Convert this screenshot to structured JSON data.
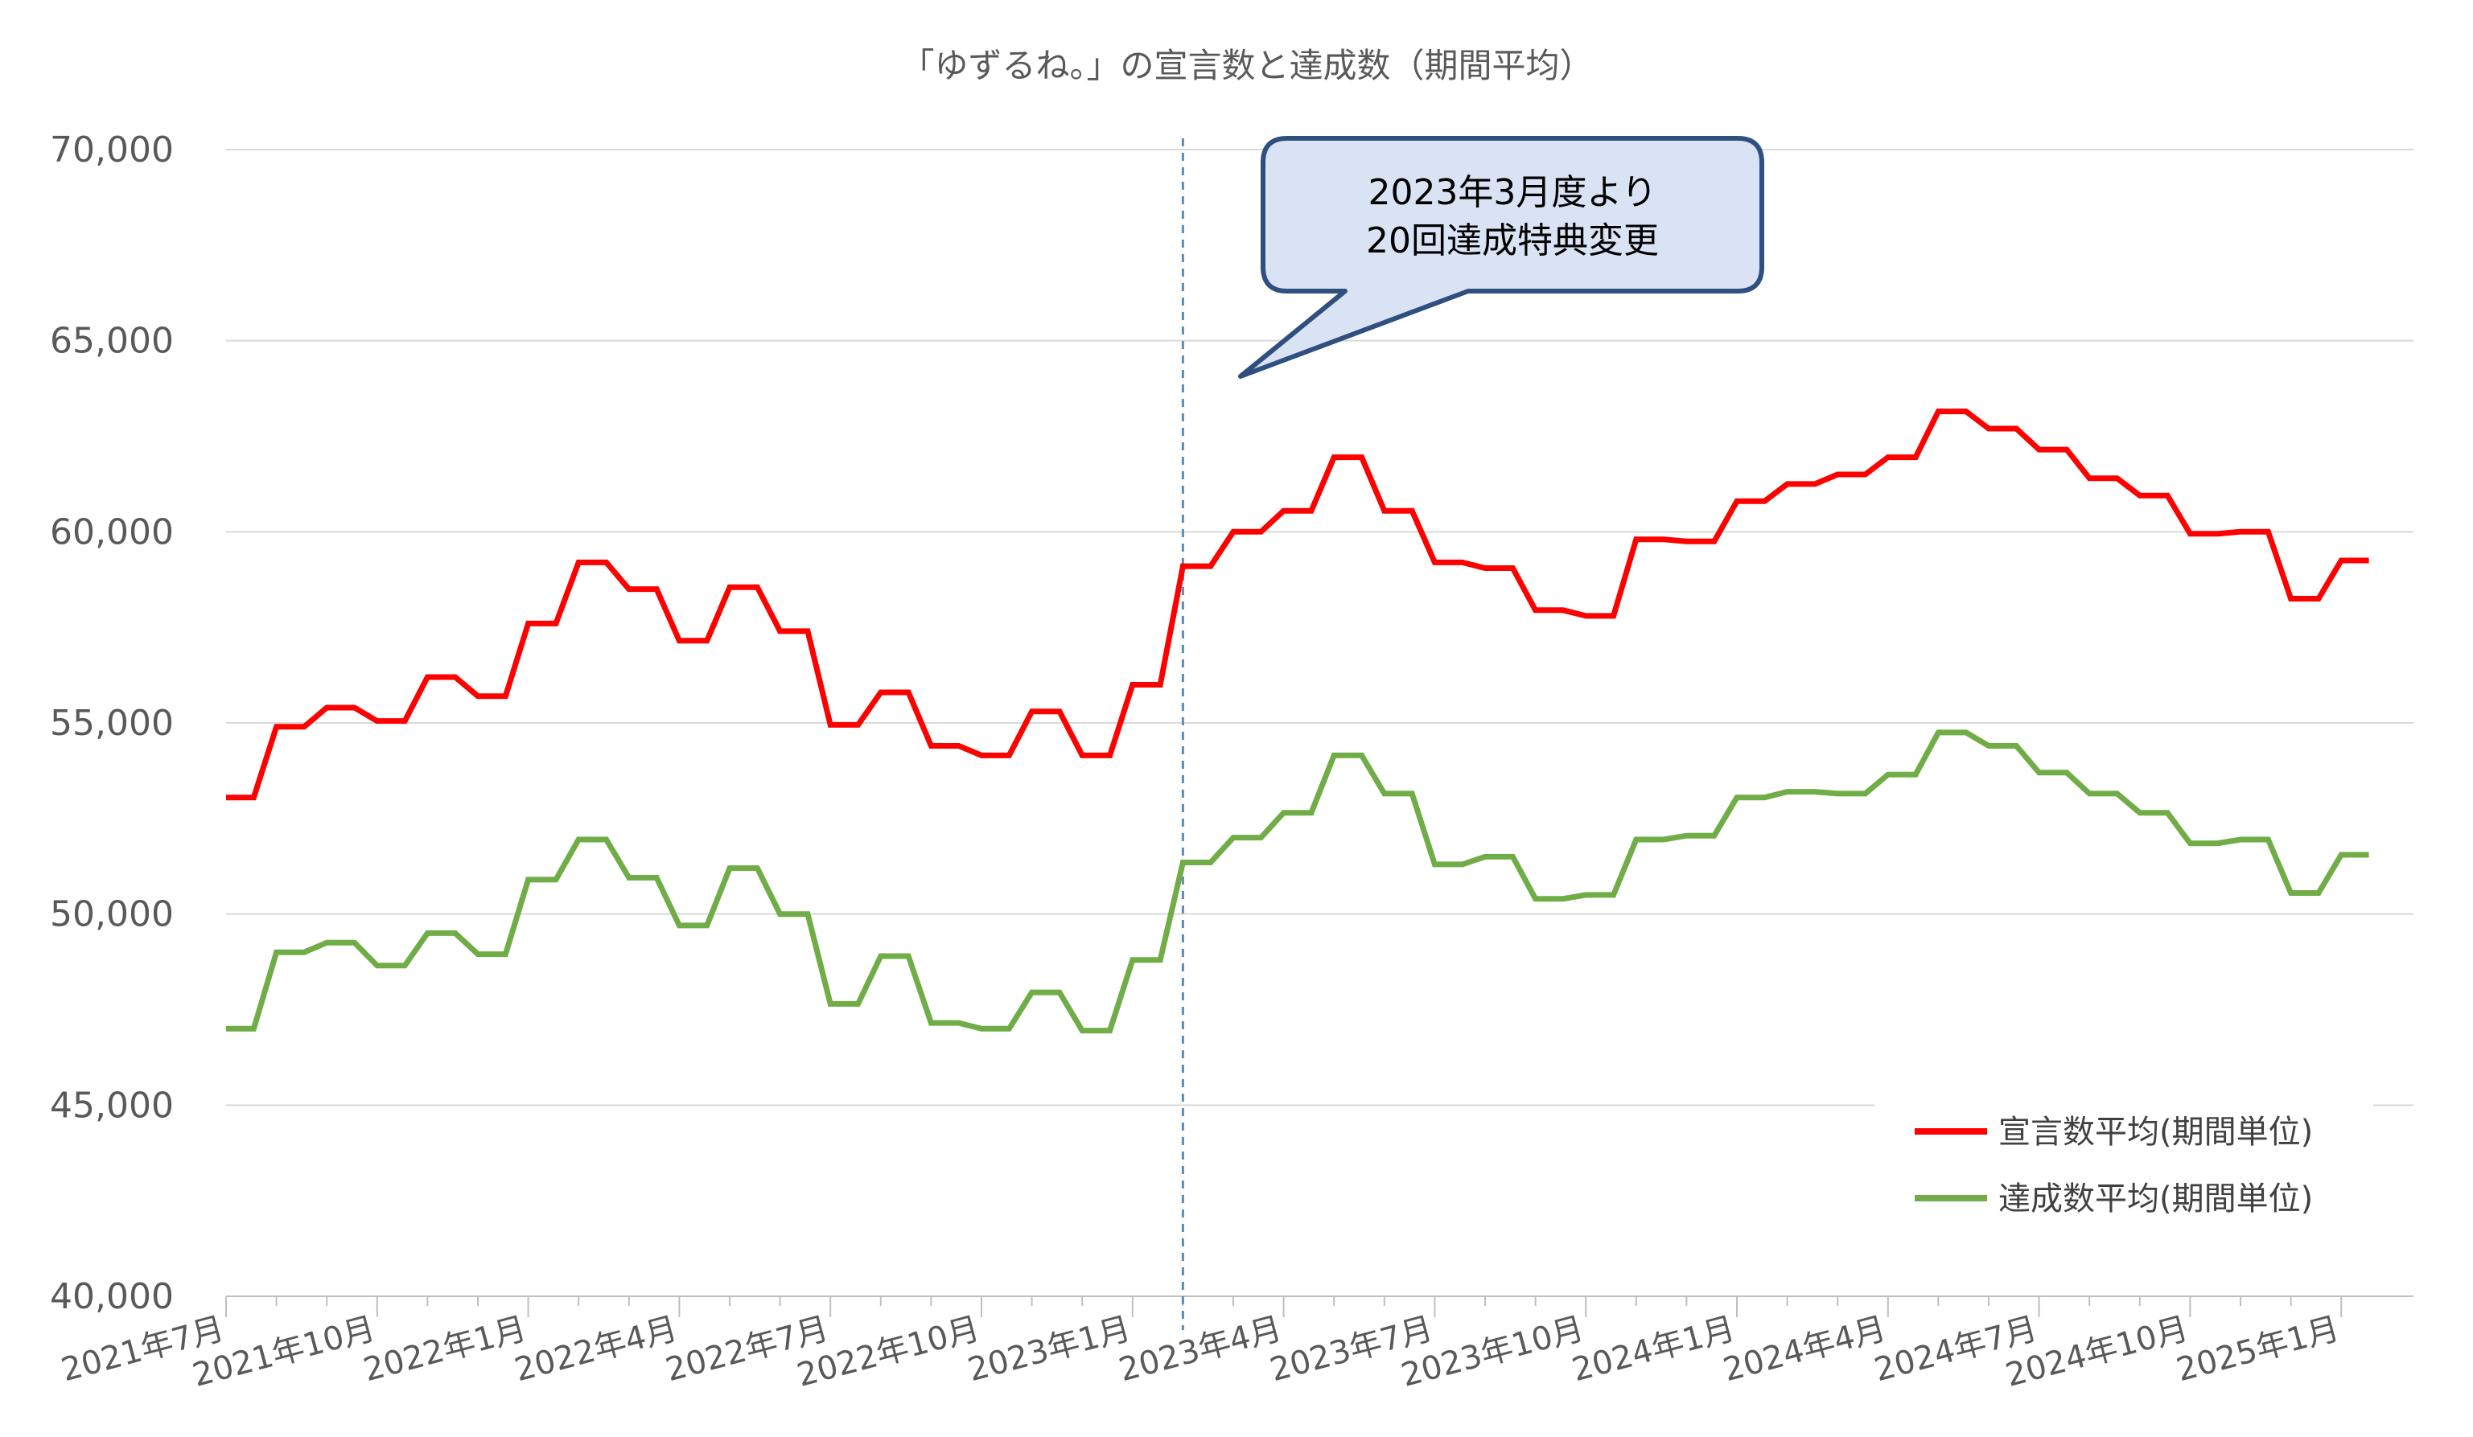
{
  "chart_data": {
    "type": "line",
    "title": "「ゆずるね。」の宣言数と達成数（期間平均）",
    "xlabel": "",
    "ylabel": "",
    "ylim": [
      40000,
      70000
    ],
    "yticks": [
      "40,000",
      "45,000",
      "50,000",
      "55,000",
      "60,000",
      "65,000",
      "70,000"
    ],
    "ytick_values": [
      40000,
      45000,
      50000,
      55000,
      60000,
      65000,
      70000
    ],
    "x_labels": [
      "2021年7月",
      "2021年10月",
      "2022年1月",
      "2022年4月",
      "2022年7月",
      "2022年10月",
      "2023年1月",
      "2023年4月",
      "2023年7月",
      "2023年10月",
      "2024年1月",
      "2024年4月",
      "2024年7月",
      "2024年10月",
      "2025年1月"
    ],
    "x_label_month_index": [
      0,
      3,
      6,
      9,
      12,
      15,
      18,
      21,
      24,
      27,
      30,
      33,
      36,
      39,
      42
    ],
    "months_count": 43,
    "grid": true,
    "legend_position": "bottom-right",
    "annotation": {
      "lines": [
        "2023年3月度より",
        "20回達成特典変更"
      ],
      "marker_month_index": 19
    },
    "series": [
      {
        "name": "宣言数平均(期間単位)",
        "color": "#ff0000",
        "values": [
          53050,
          54900,
          55400,
          55050,
          56200,
          55700,
          57600,
          59200,
          58500,
          57150,
          58550,
          57400,
          54950,
          55800,
          54400,
          54150,
          55300,
          54150,
          56000,
          59100,
          60000,
          60550,
          61950,
          60550,
          59200,
          59050,
          57950,
          57800,
          59800,
          59750,
          60800,
          61250,
          61500,
          61950,
          63150,
          62700,
          62150,
          61400,
          60950,
          59950,
          60000,
          58250,
          59250
        ]
      },
      {
        "name": "達成数平均(期間単位)",
        "color": "#70ad47",
        "values": [
          47000,
          49000,
          49250,
          48650,
          49500,
          48950,
          50900,
          51950,
          50950,
          49700,
          51200,
          50000,
          47650,
          48900,
          47150,
          47000,
          47950,
          46950,
          48800,
          51350,
          52000,
          52650,
          54150,
          53150,
          51300,
          51500,
          50400,
          50500,
          51950,
          52050,
          53050,
          53200,
          53150,
          53650,
          54750,
          54400,
          53700,
          53150,
          52650,
          51850,
          51950,
          50550,
          51550
        ]
      }
    ]
  }
}
